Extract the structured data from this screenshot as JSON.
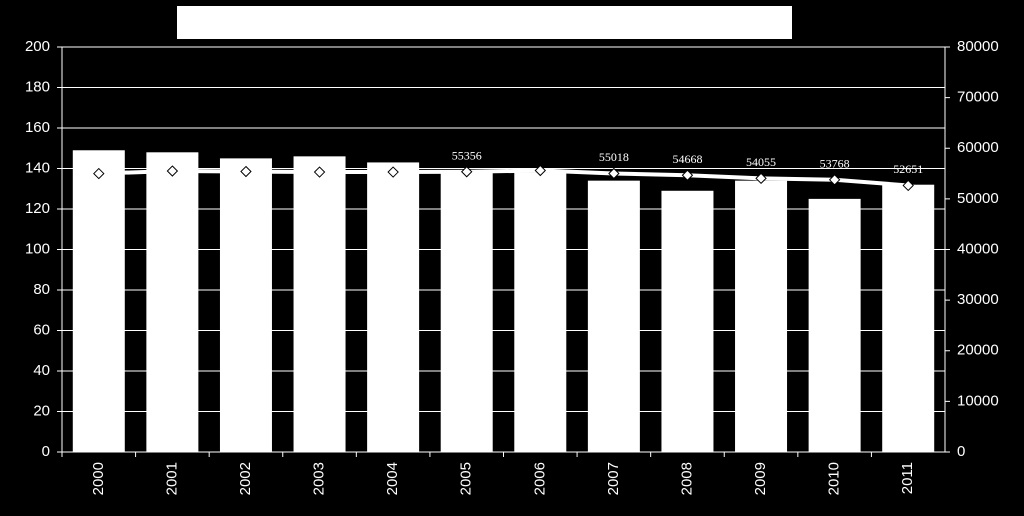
{
  "chart_data": {
    "type": "bar-line",
    "categories": [
      "2000",
      "2001",
      "2002",
      "2003",
      "2004",
      "2005",
      "2006",
      "2007",
      "2008",
      "2009",
      "2010",
      "2011"
    ],
    "series": [
      {
        "type": "bar",
        "color": "#ffffff",
        "values": [
          149,
          148,
          145,
          146,
          143,
          139,
          138,
          134,
          129,
          134,
          125,
          132
        ]
      },
      {
        "type": "line",
        "axis": "y2",
        "color": "#ffffff",
        "values": [
          55000,
          55500,
          55400,
          55300,
          55300,
          55356,
          55600,
          55018,
          54668,
          54055,
          53768,
          52651
        ],
        "value_labels": [
          null,
          null,
          null,
          null,
          null,
          "55356",
          null,
          "55018",
          "54668",
          "54055",
          "53768",
          "52651"
        ]
      }
    ],
    "ylim": [
      0,
      200
    ],
    "yticks": [
      0,
      20,
      40,
      60,
      80,
      100,
      120,
      140,
      160,
      180,
      200
    ],
    "y2lim": [
      0,
      80000
    ],
    "y2ticks": [
      0,
      10000,
      20000,
      30000,
      40000,
      50000,
      60000,
      70000,
      80000
    ],
    "grid": true
  }
}
